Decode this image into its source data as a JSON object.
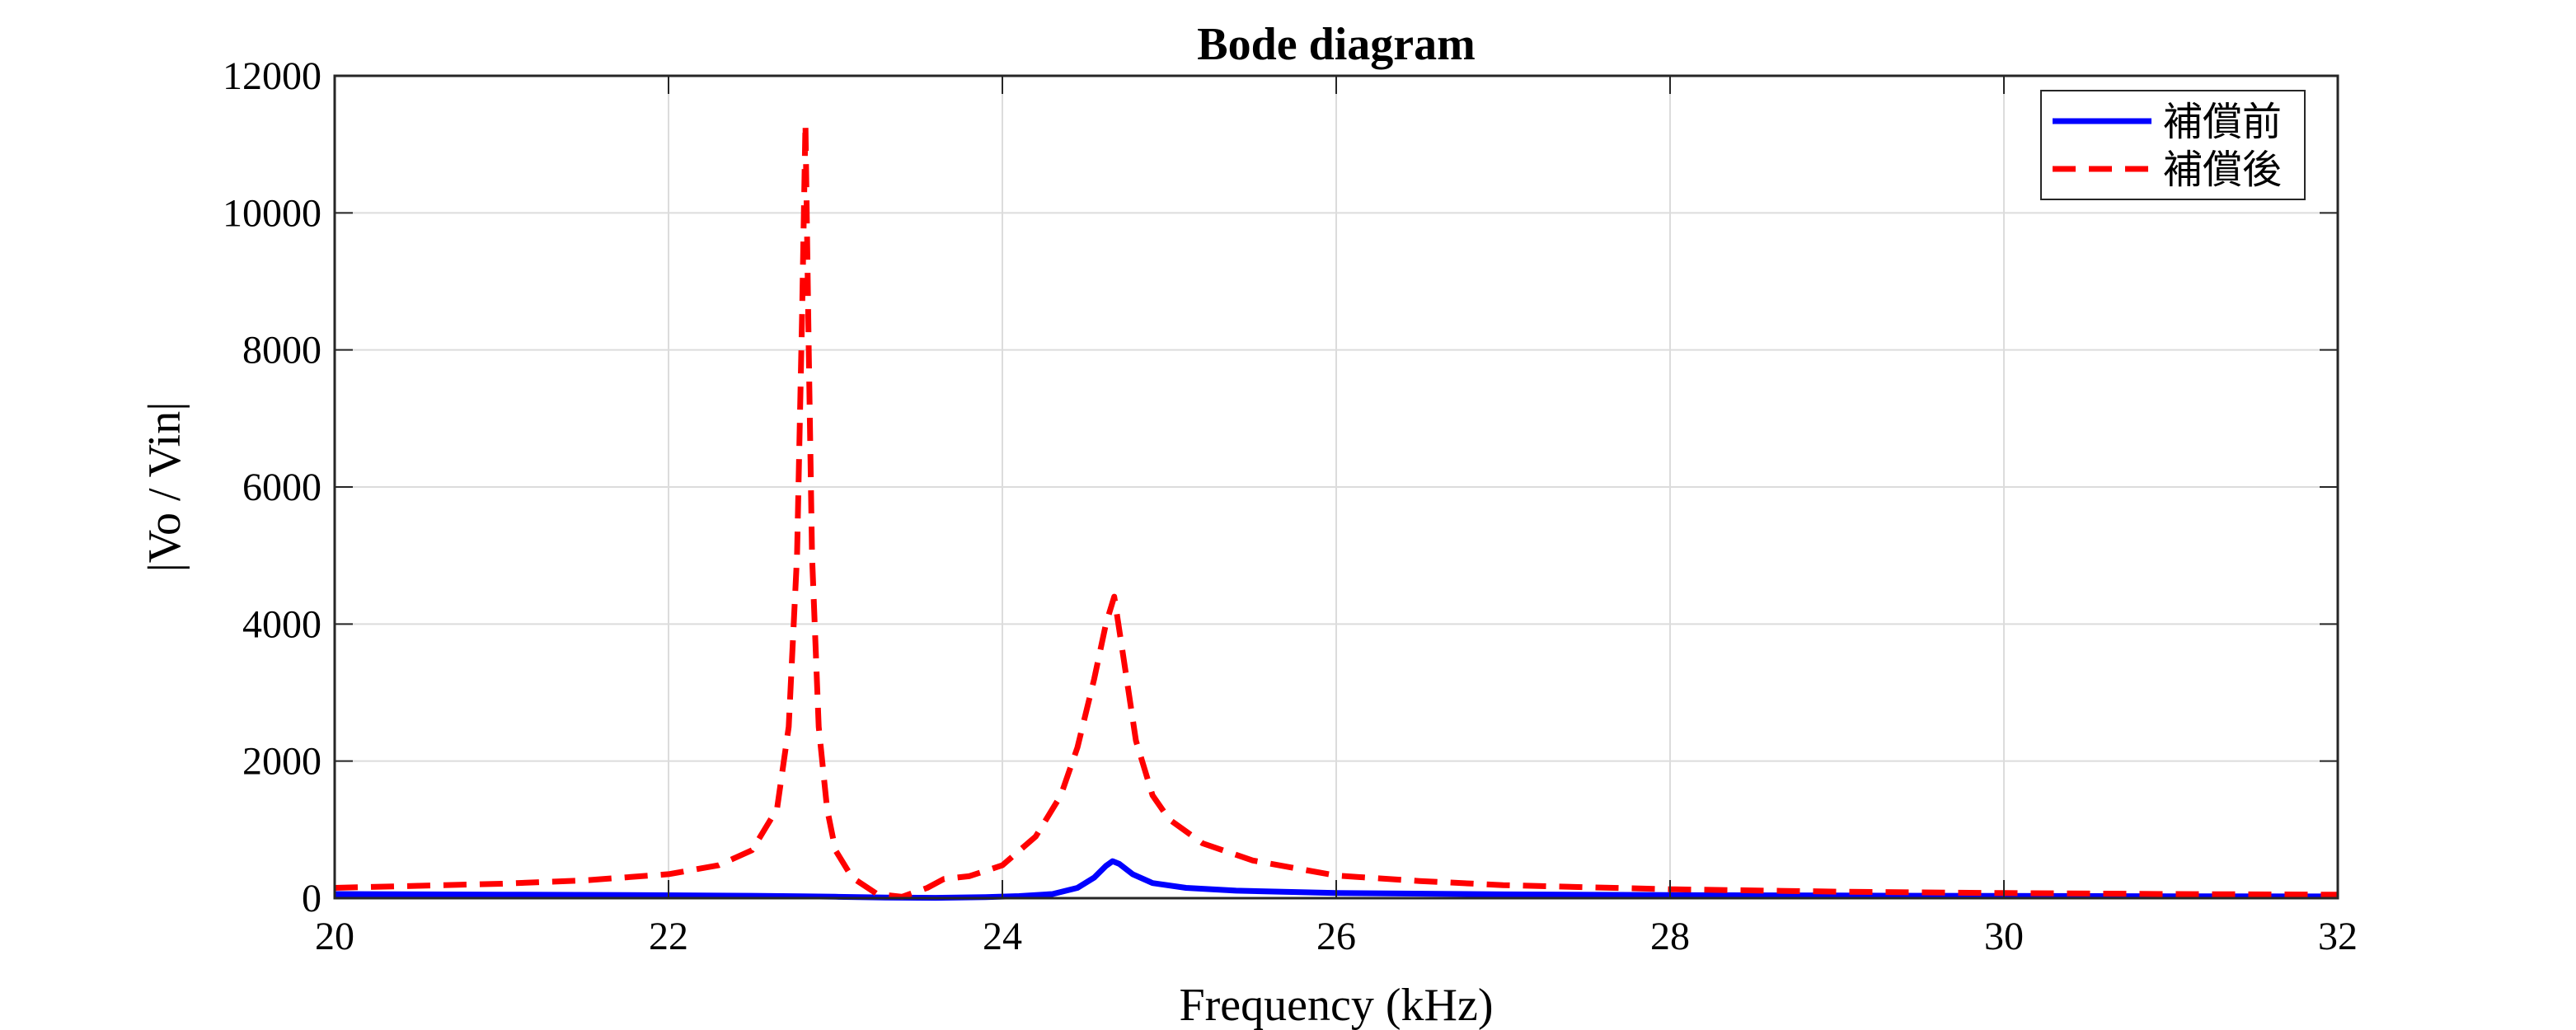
{
  "chart_data": {
    "type": "line",
    "title": "Bode diagram",
    "xlabel": "Frequency (kHz)",
    "ylabel": "|Vo / Vin|",
    "xlim": [
      20,
      32
    ],
    "ylim": [
      0,
      12000
    ],
    "xticks": [
      20,
      22,
      24,
      26,
      28,
      30,
      32
    ],
    "yticks": [
      0,
      2000,
      4000,
      6000,
      8000,
      10000,
      12000
    ],
    "grid": true,
    "legend_position": "top-right",
    "series": [
      {
        "name": "補償前",
        "color": "#0000ff",
        "style": "solid",
        "x": [
          20,
          21,
          22,
          22.5,
          22.8,
          23,
          23.3,
          23.6,
          23.9,
          24.1,
          24.3,
          24.45,
          24.55,
          24.62,
          24.66,
          24.7,
          24.78,
          24.9,
          25.1,
          25.4,
          26,
          27,
          28,
          29,
          30,
          31,
          32
        ],
        "y": [
          60,
          52,
          42,
          35,
          28,
          20,
          8,
          5,
          15,
          30,
          60,
          150,
          300,
          470,
          540,
          500,
          350,
          220,
          150,
          110,
          75,
          55,
          45,
          38,
          32,
          28,
          25
        ]
      },
      {
        "name": "補償後",
        "color": "#ff0000",
        "style": "dashed",
        "x": [
          20,
          20.5,
          21,
          21.5,
          22,
          22.3,
          22.5,
          22.65,
          22.72,
          22.77,
          22.8,
          22.82,
          22.84,
          22.86,
          22.9,
          22.95,
          23,
          23.1,
          23.25,
          23.4,
          23.55,
          23.65,
          23.8,
          24,
          24.2,
          24.35,
          24.45,
          24.55,
          24.62,
          24.67,
          24.72,
          24.8,
          24.9,
          25,
          25.2,
          25.5,
          26,
          26.5,
          27,
          28,
          29,
          30,
          31,
          32
        ],
        "y": [
          150,
          180,
          210,
          260,
          350,
          480,
          700,
          1300,
          2500,
          5000,
          8500,
          11300,
          8000,
          5000,
          2500,
          1300,
          700,
          300,
          60,
          20,
          150,
          280,
          320,
          480,
          900,
          1500,
          2200,
          3200,
          4000,
          4400,
          3600,
          2300,
          1500,
          1150,
          800,
          550,
          330,
          250,
          190,
          130,
          95,
          75,
          60,
          50
        ]
      }
    ]
  }
}
